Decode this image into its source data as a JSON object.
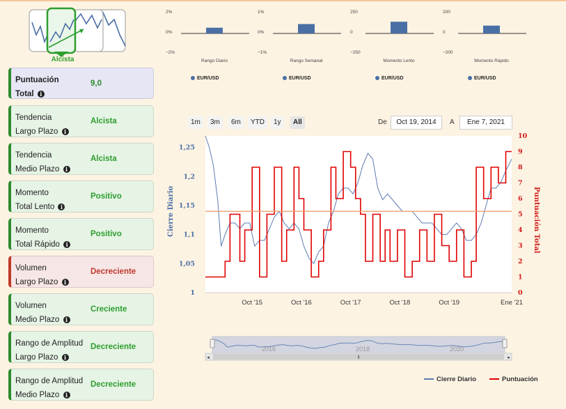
{
  "trend_summary": {
    "label": "Alcista",
    "selected_icon": "uptrend-icon"
  },
  "cards": [
    {
      "line1": "Puntuación",
      "line2": "Total",
      "value": "9,0",
      "kind": "main"
    },
    {
      "line1": "Tendencia",
      "line2": "Largo Plazo",
      "value": "Alcista",
      "kind": "pos"
    },
    {
      "line1": "Tendencia",
      "line2": "Medio Plazo",
      "value": "Alcista",
      "kind": "pos"
    },
    {
      "line1": "Momento",
      "line2": "Total Lento",
      "value": "Positivo",
      "kind": "pos"
    },
    {
      "line1": "Momento",
      "line2": "Total Rápido",
      "value": "Positivo",
      "kind": "pos"
    },
    {
      "line1": "Volumen",
      "line2": "Largo Plazo",
      "value": "Decreciente",
      "kind": "neg"
    },
    {
      "line1": "Volumen",
      "line2": "Medio Plazo",
      "value": "Creciente",
      "kind": "pos"
    },
    {
      "line1": "Rango de Amplitud",
      "line2": "Largo Plazo",
      "value": "Decreciente",
      "kind": "pos"
    },
    {
      "line1": "Rango de Amplitud",
      "line2": "Medio Plazo",
      "value": "Decreciente",
      "kind": "pos"
    }
  ],
  "range_selector": {
    "buttons": [
      "1m",
      "3m",
      "6m",
      "YTD",
      "1y",
      "All"
    ],
    "active": "All",
    "from_label": "De",
    "from_date": "Oct 19, 2014",
    "to_label": "A",
    "to_date": "Ene 7, 2021"
  },
  "chart_data": [
    {
      "type": "bar",
      "title": "",
      "xlabel": "Rango Diario",
      "ylabel": "",
      "yticks": [
        "2%",
        "0%",
        "−2%"
      ],
      "ylim": [
        -2,
        2
      ],
      "categories": [
        "EUR/USD"
      ],
      "values": [
        0.55
      ],
      "series_name": "EUR/USD"
    },
    {
      "type": "bar",
      "xlabel": "Rango Semanal",
      "yticks": [
        "1%",
        "0%",
        "−1%"
      ],
      "ylim": [
        -1,
        1
      ],
      "categories": [
        "EUR/USD"
      ],
      "values": [
        0.45
      ],
      "series_name": "EUR/USD"
    },
    {
      "type": "bar",
      "xlabel": "Momento Lento",
      "yticks": [
        "250",
        "0",
        "−250"
      ],
      "ylim": [
        -250,
        250
      ],
      "categories": [
        "EUR/USD"
      ],
      "values": [
        140
      ],
      "series_name": "EUR/USD"
    },
    {
      "type": "bar",
      "xlabel": "Momento Rápido",
      "yticks": [
        "200",
        "0",
        "−200"
      ],
      "ylim": [
        -200,
        200
      ],
      "categories": [
        "EUR/USD"
      ],
      "values": [
        75
      ],
      "series_name": "EUR/USD"
    },
    {
      "type": "line",
      "title": "",
      "xlabel": "",
      "ylabel": "Cierre Diario",
      "ylabel_right": "Puntuación Total",
      "x_ticks": [
        "Oct '15",
        "Oct '16",
        "Oct '17",
        "Oct '18",
        "Oct '19",
        "Ene '21"
      ],
      "y_ticks_left": [
        "1",
        "1,05",
        "1,1",
        "1,15",
        "1,2",
        "1,25"
      ],
      "y_ticks_right": [
        "0",
        "1",
        "2",
        "3",
        "4",
        "5",
        "6",
        "7",
        "8",
        "9",
        "10"
      ],
      "ylim_left": [
        1.0,
        1.27
      ],
      "ylim_right": [
        0,
        10
      ],
      "xlim": [
        2014.8,
        2021.02
      ],
      "reference_line": 1.14,
      "navigator_labels": [
        "2016",
        "2018",
        "2020"
      ],
      "series": [
        {
          "name": "Cierre Diario",
          "color": "#5b7bb3",
          "axis": "left",
          "x": [
            2014.8,
            2014.88,
            2014.96,
            2015.05,
            2015.12,
            2015.2,
            2015.3,
            2015.4,
            2015.5,
            2015.6,
            2015.7,
            2015.8,
            2015.9,
            2016.0,
            2016.1,
            2016.2,
            2016.3,
            2016.4,
            2016.5,
            2016.6,
            2016.7,
            2016.8,
            2016.9,
            2017.0,
            2017.1,
            2017.2,
            2017.3,
            2017.4,
            2017.5,
            2017.6,
            2017.7,
            2017.8,
            2017.9,
            2018.0,
            2018.1,
            2018.2,
            2018.3,
            2018.4,
            2018.5,
            2018.6,
            2018.7,
            2018.8,
            2018.9,
            2019.0,
            2019.1,
            2019.2,
            2019.3,
            2019.4,
            2019.5,
            2019.6,
            2019.7,
            2019.8,
            2019.9,
            2020.0,
            2020.1,
            2020.2,
            2020.3,
            2020.4,
            2020.5,
            2020.6,
            2020.7,
            2020.8,
            2020.9,
            2021.02
          ],
          "values": [
            1.27,
            1.25,
            1.22,
            1.16,
            1.08,
            1.1,
            1.12,
            1.12,
            1.11,
            1.12,
            1.12,
            1.08,
            1.09,
            1.09,
            1.11,
            1.13,
            1.14,
            1.12,
            1.11,
            1.12,
            1.11,
            1.08,
            1.06,
            1.05,
            1.07,
            1.08,
            1.12,
            1.14,
            1.17,
            1.18,
            1.18,
            1.17,
            1.19,
            1.22,
            1.24,
            1.23,
            1.18,
            1.16,
            1.17,
            1.16,
            1.15,
            1.14,
            1.14,
            1.14,
            1.13,
            1.12,
            1.12,
            1.12,
            1.11,
            1.1,
            1.1,
            1.11,
            1.12,
            1.11,
            1.09,
            1.09,
            1.1,
            1.12,
            1.15,
            1.18,
            1.18,
            1.19,
            1.21,
            1.23
          ]
        },
        {
          "name": "Puntuación",
          "color": "#e00000",
          "axis": "right",
          "step": true,
          "x": [
            2014.8,
            2015.2,
            2015.3,
            2015.5,
            2015.6,
            2015.75,
            2015.9,
            2016.05,
            2016.2,
            2016.35,
            2016.45,
            2016.6,
            2016.7,
            2016.8,
            2016.95,
            2017.1,
            2017.2,
            2017.35,
            2017.45,
            2017.6,
            2017.75,
            2017.85,
            2017.95,
            2018.05,
            2018.2,
            2018.35,
            2018.45,
            2018.55,
            2018.7,
            2018.85,
            2019.0,
            2019.15,
            2019.3,
            2019.45,
            2019.6,
            2019.75,
            2019.9,
            2020.05,
            2020.2,
            2020.3,
            2020.45,
            2020.6,
            2020.75,
            2020.9,
            2021.02
          ],
          "values": [
            1,
            2,
            5,
            2,
            4,
            8,
            1,
            5,
            8,
            2,
            4,
            8,
            6,
            4,
            1,
            2,
            4,
            8,
            6,
            9,
            8,
            6,
            5,
            2,
            5,
            2,
            4,
            2,
            4,
            1,
            2,
            4,
            2,
            5,
            3,
            2,
            4,
            1,
            2,
            8,
            6,
            8,
            7,
            9,
            9
          ]
        }
      ]
    }
  ]
}
